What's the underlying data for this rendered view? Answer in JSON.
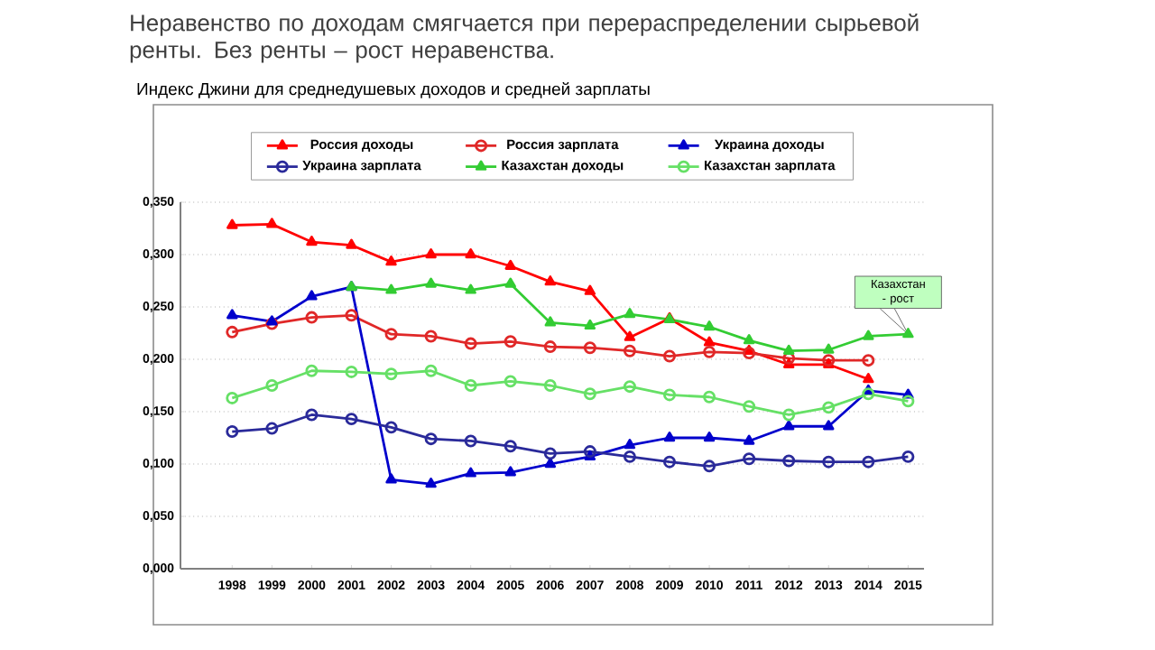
{
  "chart_data": {
    "type": "line",
    "title": "Неравенство по доходам смягчается при перераспределении сырьевой ренты. Без ренты – рост неравенства.",
    "subtitle": "Индекс Джини для среднедушевых доходов и средней зарплаты",
    "categories": [
      "1998",
      "1999",
      "2000",
      "2001",
      "2002",
      "2003",
      "2004",
      "2005",
      "2006",
      "2007",
      "2008",
      "2009",
      "2010",
      "2011",
      "2012",
      "2013",
      "2014",
      "2015"
    ],
    "series": [
      {
        "name": "Россия доходы",
        "color": "#ff0000",
        "marker": "triangle",
        "values": [
          0.328,
          0.329,
          0.312,
          0.309,
          0.293,
          0.3,
          0.3,
          0.289,
          0.274,
          0.265,
          0.221,
          0.239,
          0.216,
          0.208,
          0.195,
          0.195,
          0.181,
          null
        ]
      },
      {
        "name": "Россия зарплата",
        "color": "#e02828",
        "marker": "circle",
        "values": [
          0.226,
          0.234,
          0.24,
          0.242,
          0.224,
          0.222,
          0.215,
          0.217,
          0.212,
          0.211,
          0.208,
          0.203,
          0.207,
          0.206,
          0.201,
          0.199,
          0.199,
          null
        ]
      },
      {
        "name": "Украина доходы",
        "color": "#0000cc",
        "marker": "triangle",
        "values": [
          0.242,
          0.236,
          0.26,
          0.269,
          0.085,
          0.081,
          0.091,
          0.092,
          0.1,
          0.107,
          0.118,
          0.125,
          0.125,
          0.122,
          0.136,
          0.136,
          0.17,
          0.166
        ]
      },
      {
        "name": "Украина зарплата",
        "color": "#2a2a9a",
        "marker": "circle",
        "values": [
          0.131,
          0.134,
          0.147,
          0.143,
          0.135,
          0.124,
          0.122,
          0.117,
          0.11,
          0.112,
          0.107,
          0.102,
          0.098,
          0.105,
          0.103,
          0.102,
          0.102,
          0.107
        ]
      },
      {
        "name": "Казахстан доходы",
        "color": "#33cc33",
        "marker": "triangle",
        "values": [
          null,
          null,
          null,
          0.269,
          0.266,
          0.272,
          0.266,
          0.272,
          0.235,
          0.232,
          0.243,
          0.238,
          0.231,
          0.218,
          0.208,
          0.209,
          0.222,
          0.224
        ]
      },
      {
        "name": "Казахстан зарплата",
        "color": "#66e066",
        "marker": "circle",
        "values": [
          0.163,
          0.175,
          0.189,
          0.188,
          0.186,
          0.189,
          0.175,
          0.179,
          0.175,
          0.167,
          0.174,
          0.166,
          0.164,
          0.155,
          0.147,
          0.154,
          0.167,
          0.16
        ]
      }
    ],
    "ylim": [
      0,
      0.35
    ],
    "yticks": [
      {
        "value": 0,
        "label": "0,000"
      },
      {
        "value": 0.05,
        "label": "0,050"
      },
      {
        "value": 0.1,
        "label": "0,100"
      },
      {
        "value": 0.15,
        "label": "0,150"
      },
      {
        "value": 0.2,
        "label": "0,200"
      },
      {
        "value": 0.25,
        "label": "0,250"
      },
      {
        "value": 0.3,
        "label": "0,300"
      },
      {
        "value": 0.35,
        "label": "0,350"
      }
    ],
    "grid": "y",
    "legend": "top",
    "annotations": [
      {
        "text": "Казахстан - рост",
        "x": "2015",
        "y": 0.224
      }
    ]
  }
}
